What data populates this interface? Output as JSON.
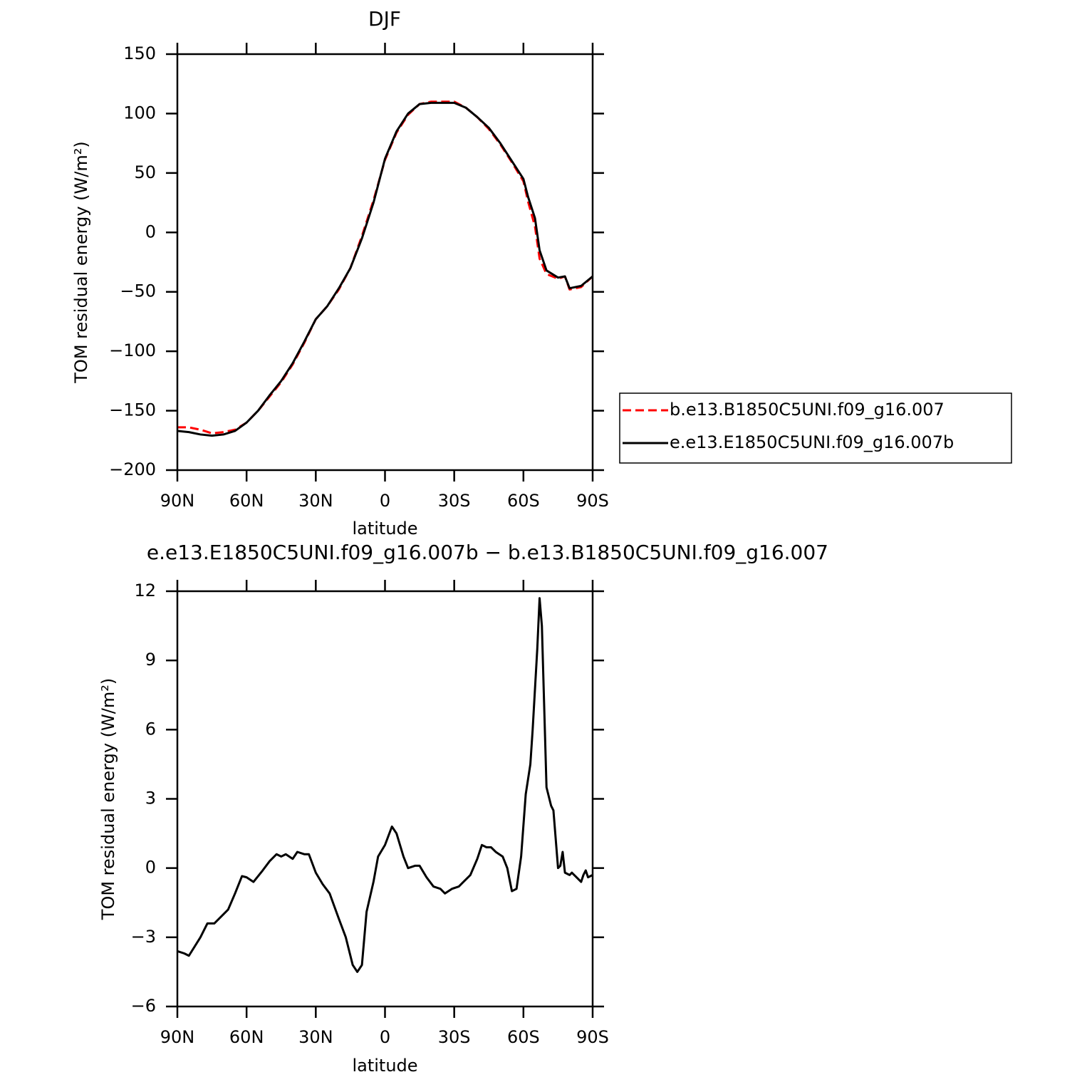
{
  "chart_data": [
    {
      "type": "line",
      "title": "DJF",
      "xlabel": "latitude",
      "ylabel": "TOM residual energy (W/m²)",
      "x": [
        90,
        85,
        80,
        75,
        70,
        65,
        60,
        55,
        50,
        45,
        40,
        35,
        30,
        25,
        20,
        15,
        10,
        5,
        0,
        -5,
        -10,
        -15,
        -20,
        -25,
        -30,
        -35,
        -40,
        -45,
        -50,
        -55,
        -60,
        -62,
        -65,
        -67,
        -70,
        -75,
        -78,
        -80,
        -85,
        -90
      ],
      "series": [
        {
          "name": "b.e13.B1850C5UNI.f09_g16.007",
          "color": "#ff0000",
          "linestyle": "dashed",
          "values": [
            -164,
            -164,
            -166,
            -169,
            -168,
            -166,
            -160,
            -150,
            -138,
            -126,
            -111,
            -93,
            -73,
            -62,
            -48,
            -30,
            -3,
            27,
            61,
            84,
            99,
            108,
            110,
            110,
            110,
            105,
            97,
            87,
            74,
            59,
            43,
            26,
            5,
            -22,
            -35,
            -39,
            -37,
            -48,
            -46,
            -37
          ]
        },
        {
          "name": "e.e13.E1850C5UNI.f09_g16.007b",
          "color": "#000000",
          "linestyle": "solid",
          "values": [
            -167,
            -168,
            -170,
            -171,
            -170,
            -167,
            -160,
            -150,
            -137,
            -125,
            -110,
            -92,
            -73,
            -62,
            -47,
            -30,
            -5,
            25,
            62,
            85,
            100,
            108,
            109,
            109,
            109,
            105,
            97,
            88,
            75,
            60,
            45,
            30,
            12,
            -15,
            -32,
            -38,
            -37,
            -47,
            -45,
            -37
          ]
        }
      ],
      "xlim": [
        90,
        -90
      ],
      "ylim": [
        -200,
        150
      ],
      "xticks": [
        {
          "value": 90,
          "label": "90N"
        },
        {
          "value": 60,
          "label": "60N"
        },
        {
          "value": 30,
          "label": "30N"
        },
        0,
        {
          "value": -30,
          "label": "30S"
        },
        {
          "value": -60,
          "label": "60S"
        },
        {
          "value": -90,
          "label": "90S"
        }
      ],
      "yticks": [
        {
          "value": -200,
          "label": "−200"
        },
        {
          "value": -150,
          "label": "−150"
        },
        {
          "value": -100,
          "label": "−100"
        },
        {
          "value": -50,
          "label": "−50"
        },
        0,
        50,
        100,
        150
      ],
      "legend": "outside-right"
    },
    {
      "type": "line",
      "title": "e.e13.E1850C5UNI.f09_g16.007b − b.e13.B1850C5UNI.f09_g16.007",
      "xlabel": "latitude",
      "ylabel": "TOM residual energy (W/m²)",
      "x": [
        90,
        87,
        85,
        80,
        77,
        74,
        72,
        68,
        65,
        62,
        60,
        57,
        53,
        50,
        47,
        45,
        43,
        40,
        38,
        35,
        33,
        30,
        27,
        24,
        20,
        17,
        14,
        12,
        10,
        8,
        5,
        3,
        0,
        -3,
        -5,
        -8,
        -10,
        -13,
        -15,
        -18,
        -21,
        -24,
        -26,
        -29,
        -32,
        -34,
        -37,
        -40,
        -42,
        -44,
        -46,
        -48,
        -51,
        -53,
        -55,
        -57,
        -59,
        -61,
        -63,
        -64,
        -66,
        -67,
        -68,
        -70,
        -72,
        -73,
        -75,
        -76,
        -77,
        -78,
        -80,
        -81,
        -83,
        -85,
        -86,
        -87,
        -88,
        -90
      ],
      "series": [
        {
          "color": "#000000",
          "linestyle": "solid",
          "values": [
            -3.6,
            -3.7,
            -3.8,
            -3.0,
            -2.4,
            -2.4,
            -2.2,
            -1.8,
            -1.1,
            -0.35,
            -0.4,
            -0.6,
            -0.1,
            0.3,
            0.6,
            0.5,
            0.6,
            0.4,
            0.7,
            0.6,
            0.6,
            -0.2,
            -0.7,
            -1.1,
            -2.2,
            -3.0,
            -4.2,
            -4.5,
            -4.2,
            -1.9,
            -0.6,
            0.5,
            1.0,
            1.8,
            1.5,
            0.5,
            0.0,
            0.1,
            0.1,
            -0.4,
            -0.8,
            -0.9,
            -1.1,
            -0.9,
            -0.8,
            -0.6,
            -0.3,
            0.4,
            1.0,
            0.9,
            0.9,
            0.7,
            0.5,
            0.0,
            -1.0,
            -0.9,
            0.5,
            3.2,
            4.5,
            6.0,
            9.5,
            11.7,
            10.5,
            3.5,
            2.7,
            2.5,
            0.0,
            0.1,
            0.7,
            -0.2,
            -0.3,
            -0.2,
            -0.4,
            -0.6,
            -0.3,
            -0.1,
            -0.4,
            -0.3
          ]
        }
      ],
      "xlim": [
        90,
        -90
      ],
      "ylim": [
        -6,
        12
      ],
      "xticks": [
        {
          "value": 90,
          "label": "90N"
        },
        {
          "value": 60,
          "label": "60N"
        },
        {
          "value": 30,
          "label": "30N"
        },
        0,
        {
          "value": -30,
          "label": "30S"
        },
        {
          "value": -60,
          "label": "60S"
        },
        {
          "value": -90,
          "label": "90S"
        }
      ],
      "yticks": [
        {
          "value": -6,
          "label": "−6"
        },
        {
          "value": -3,
          "label": "−3"
        },
        0,
        3,
        6,
        9,
        12
      ]
    }
  ]
}
